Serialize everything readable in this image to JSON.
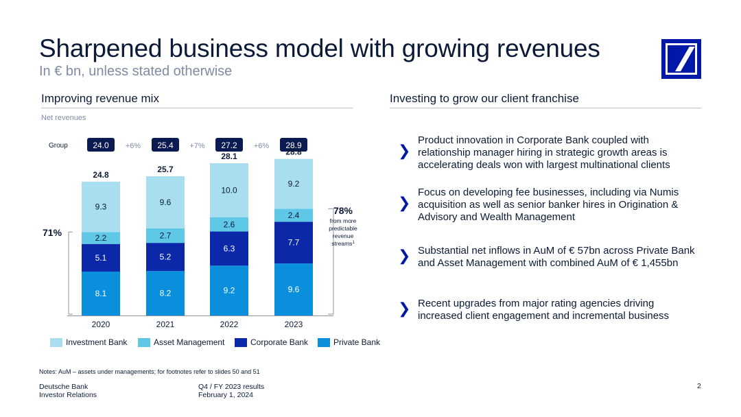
{
  "header": {
    "title": "Sharpened business model with growing revenues",
    "subtitle": "In € bn, unless stated otherwise"
  },
  "left_section": {
    "heading": "Improving revenue mix",
    "net_revenues_label": "Net revenues",
    "group_label": "Group",
    "share_left": "71%",
    "share_right": "78%",
    "share_right_note": [
      "from more",
      "predictable",
      "revenue",
      "streams"
    ],
    "share_right_footnote": "1"
  },
  "right_section": {
    "heading": "Investing to grow our client franchise",
    "bullets": [
      {
        "icon": "chevron-right-icon",
        "lines": [
          "Product innovation in Corporate Bank coupled with",
          "relationship manager hiring in strategic growth areas is",
          "accelerating deals won with largest multinational clients"
        ]
      },
      {
        "icon": "chevron-right-icon",
        "lines": [
          "Focus on developing fee businesses, including via Numis",
          "acquisition as well as senior banker hires in Origination &",
          "Advisory and Wealth Management"
        ]
      },
      {
        "icon": "chevron-right-icon",
        "lines": [
          "Substantial net inflows in AuM of € 57bn across Private Bank",
          "and Asset Management with combined AuM of € 1,455bn"
        ]
      },
      {
        "icon": "chevron-right-icon",
        "lines": [
          "Recent upgrades from major rating agencies driving",
          "increased client engagement and incremental business"
        ]
      }
    ]
  },
  "chart_data": {
    "type": "bar",
    "stacked": true,
    "title": "Net revenues",
    "categories": [
      "2020",
      "2021",
      "2022",
      "2023"
    ],
    "series": [
      {
        "name": "Private Bank",
        "color": "#0a8fdc",
        "values": [
          8.1,
          8.2,
          9.2,
          9.6
        ]
      },
      {
        "name": "Corporate Bank",
        "color": "#0a28a8",
        "values": [
          5.1,
          5.2,
          6.3,
          7.7
        ]
      },
      {
        "name": "Asset Management",
        "color": "#5ec8e6",
        "values": [
          2.2,
          2.7,
          2.6,
          2.4
        ]
      },
      {
        "name": "Investment Bank",
        "color": "#a9def0",
        "values": [
          9.3,
          9.6,
          10.0,
          9.2
        ]
      }
    ],
    "totals": [
      "24.8",
      "25.7",
      "28.1",
      "28.8"
    ],
    "group_values": [
      "24.0",
      "25.4",
      "27.2",
      "28.9"
    ],
    "group_growth": [
      "+6%",
      "+7%",
      "+6%"
    ],
    "legend_order": [
      "Investment Bank",
      "Asset Management",
      "Corporate Bank",
      "Private Bank"
    ],
    "ylim": [
      0,
      30
    ]
  },
  "notes": "Notes: AuM – assets under managements; for footnotes refer to slides 50 and 51",
  "footer": {
    "company": "Deutsche Bank",
    "department": "Investor Relations",
    "report": "Q4 / FY 2023 results",
    "date": "February 1, 2024",
    "page": "2"
  },
  "colors": {
    "navy": "#0b1a36",
    "brand_blue": "#0018a8",
    "group_box": "#0b1a50",
    "grey_text": "#7f8ba3"
  }
}
